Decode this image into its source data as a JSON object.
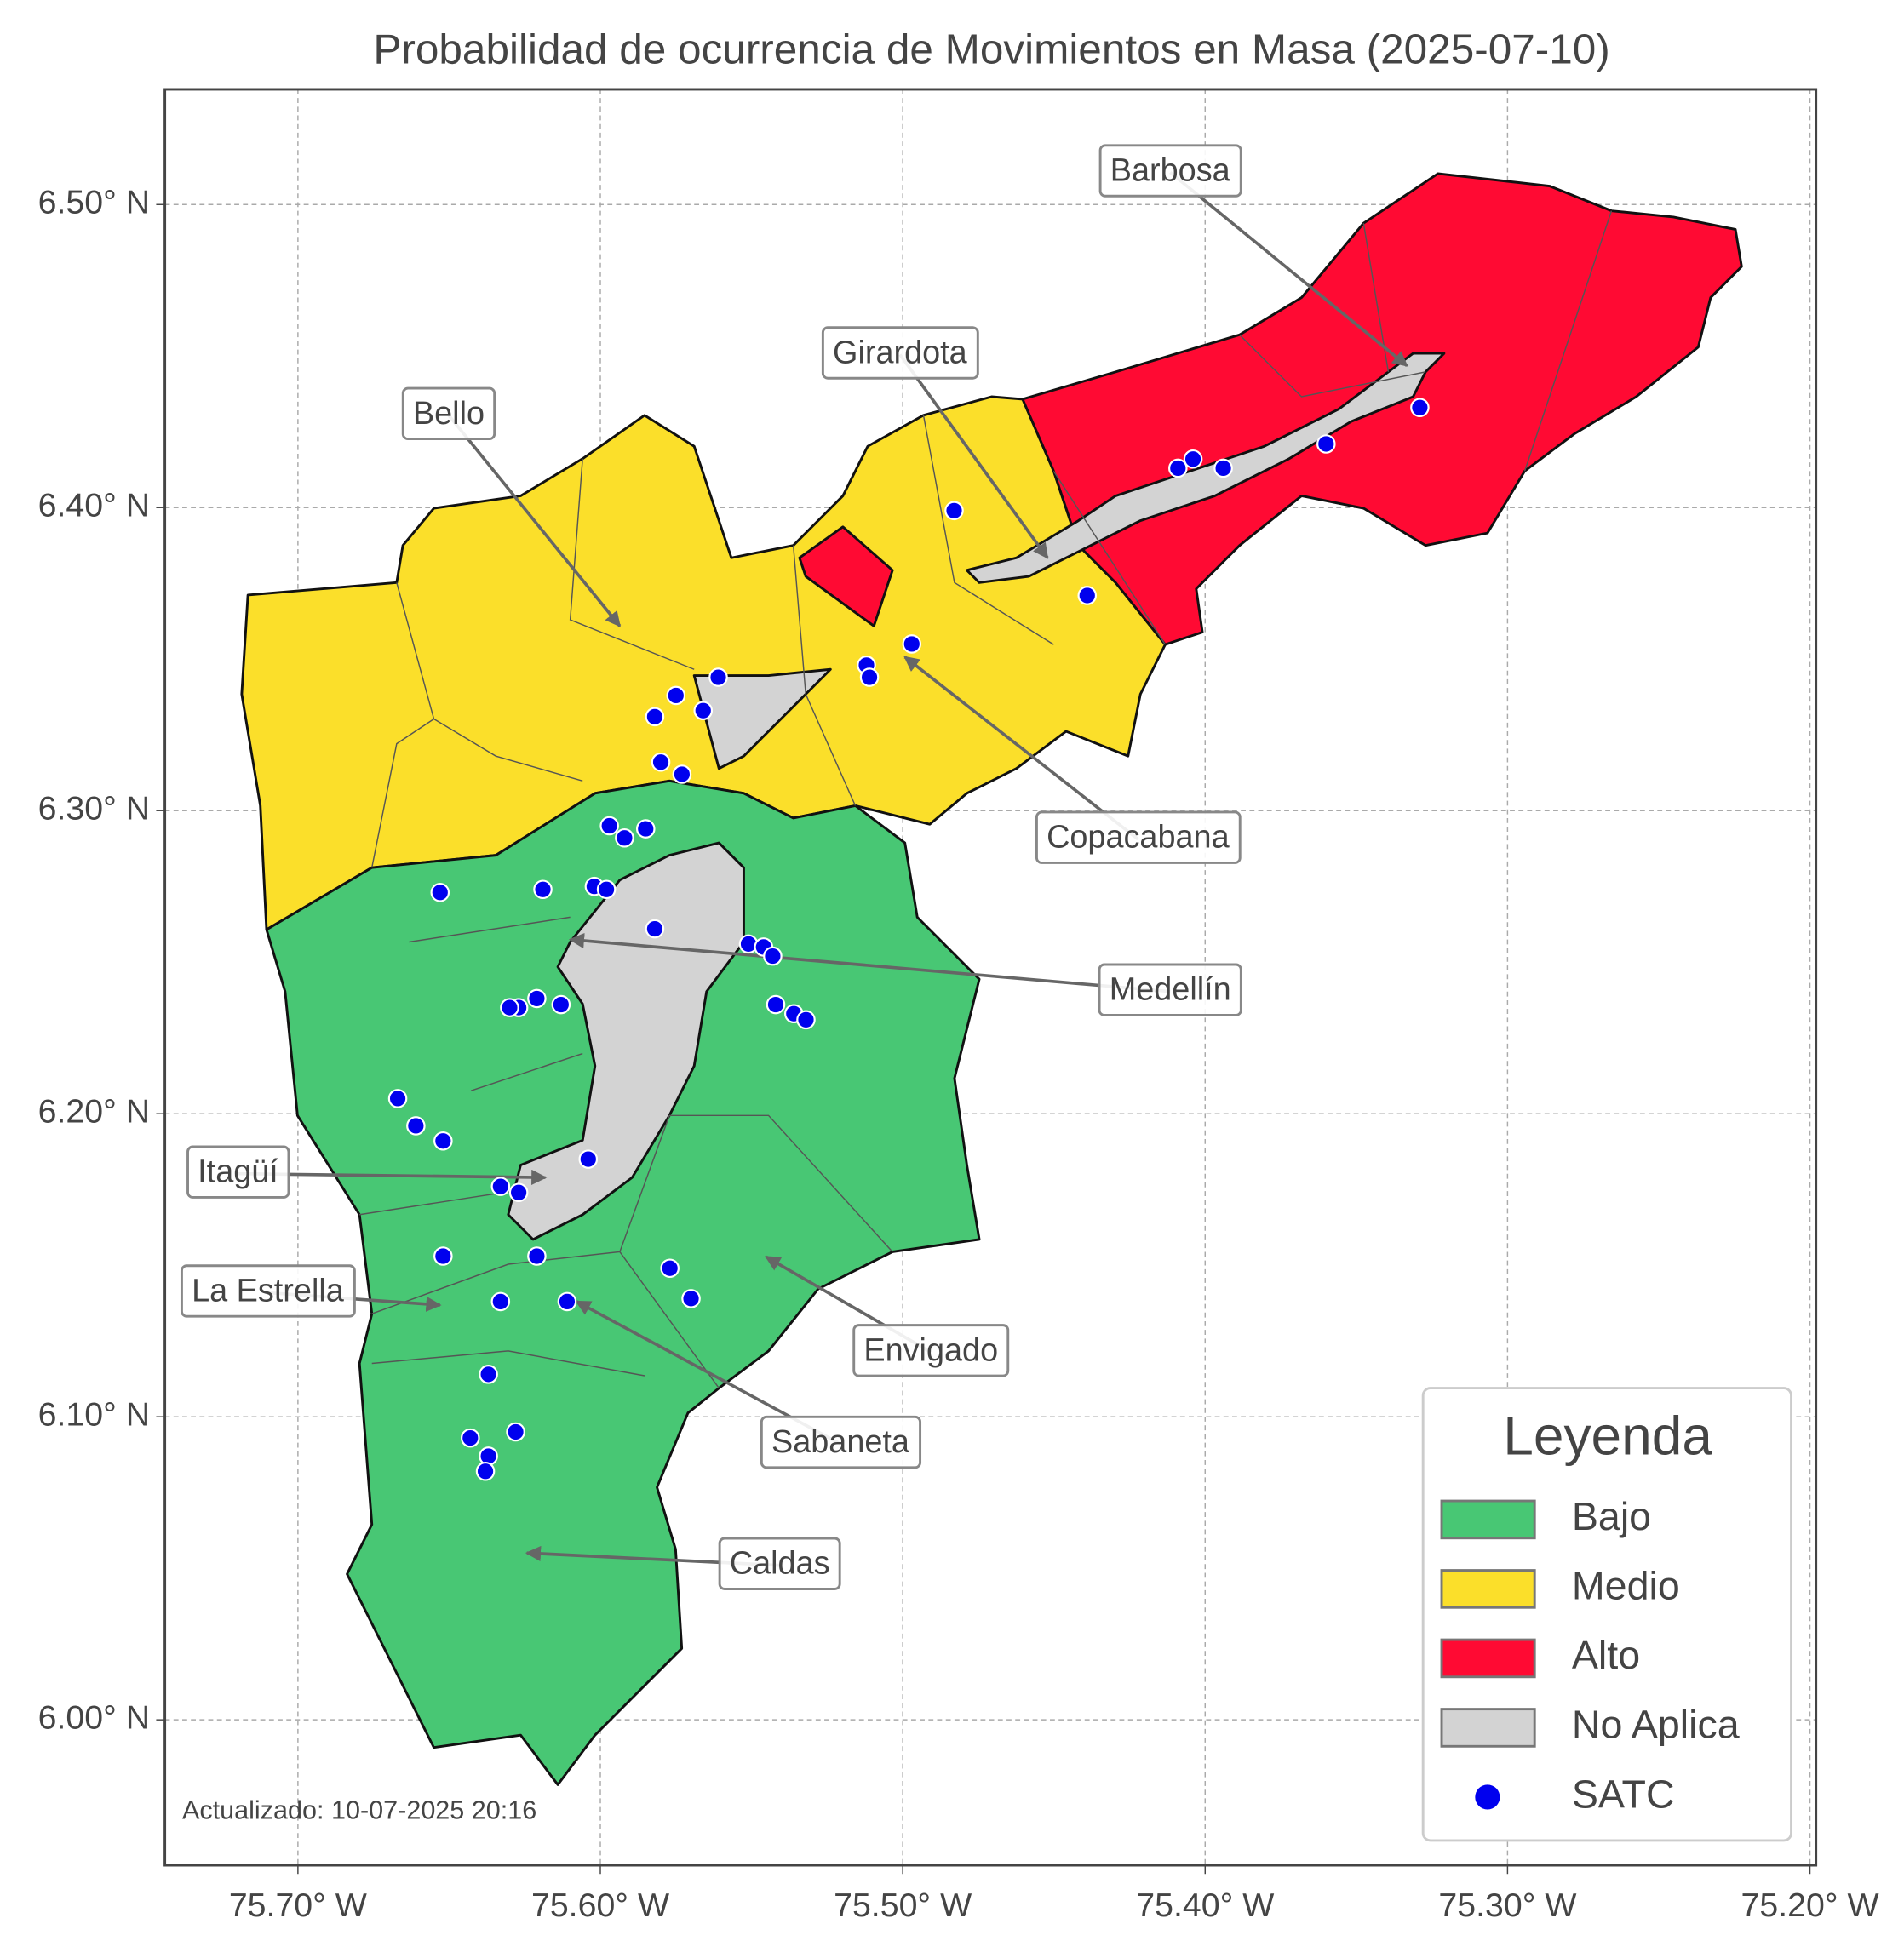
{
  "chart_data": {
    "type": "map",
    "title": "Probabilidad de ocurrencia de Movimientos en Masa (2025-07-10)",
    "xlim": [
      -75.744,
      -75.198
    ],
    "ylim": [
      5.952,
      6.538
    ],
    "xticks": [
      {
        "value": -75.7,
        "label": "75.70° W"
      },
      {
        "value": -75.6,
        "label": "75.60° W"
      },
      {
        "value": -75.5,
        "label": "75.50° W"
      },
      {
        "value": -75.4,
        "label": "75.40° W"
      },
      {
        "value": -75.3,
        "label": "75.30° W"
      },
      {
        "value": -75.2,
        "label": "75.20° W"
      }
    ],
    "yticks": [
      {
        "value": 6.0,
        "label": "6.00° N"
      },
      {
        "value": 6.1,
        "label": "6.10° N"
      },
      {
        "value": 6.2,
        "label": "6.20° N"
      },
      {
        "value": 6.3,
        "label": "6.30° N"
      },
      {
        "value": 6.4,
        "label": "6.40° N"
      },
      {
        "value": 6.5,
        "label": "6.50° N"
      }
    ],
    "grid": true,
    "categories": [
      "Bajo",
      "Medio",
      "Alto",
      "No Aplica"
    ],
    "colors": [
      "#48c774",
      "#fbdf2a",
      "#ff0a33",
      "#d3d3d3"
    ],
    "series": [
      {
        "name": "SATC",
        "color": "#0000ee",
        "x": [
          -75.329,
          -75.36,
          -75.394,
          -75.404,
          -75.409,
          -75.483,
          -75.439,
          -75.497,
          -75.512,
          -75.511,
          -75.561,
          -75.575,
          -75.566,
          -75.582,
          -75.58,
          -75.573,
          -75.597,
          -75.585,
          -75.592,
          -75.653,
          -75.619,
          -75.602,
          -75.598,
          -75.582,
          -75.551,
          -75.546,
          -75.543,
          -75.542,
          -75.536,
          -75.532,
          -75.621,
          -75.627,
          -75.63,
          -75.613,
          -75.667,
          -75.661,
          -75.652,
          -75.604,
          -75.633,
          -75.627,
          -75.652,
          -75.621,
          -75.577,
          -75.57,
          -75.633,
          -75.611,
          -75.637,
          -75.643,
          -75.628,
          -75.637,
          -75.638
        ],
        "values": [
          6.433,
          6.421,
          6.413,
          6.416,
          6.413,
          6.399,
          6.371,
          6.355,
          6.348,
          6.344,
          6.344,
          6.338,
          6.333,
          6.331,
          6.316,
          6.312,
          6.295,
          6.294,
          6.291,
          6.273,
          6.274,
          6.275,
          6.274,
          6.261,
          6.256,
          6.255,
          6.252,
          6.236,
          6.233,
          6.231,
          6.238,
          6.235,
          6.235,
          6.236,
          6.205,
          6.196,
          6.191,
          6.185,
          6.176,
          6.174,
          6.153,
          6.153,
          6.149,
          6.139,
          6.138,
          6.138,
          6.114,
          6.093,
          6.095,
          6.087,
          6.082
        ]
      }
    ],
    "annotations": [
      "Barbosa",
      "Girardota",
      "Bello",
      "Copacabana",
      "Medellín",
      "Itagüí",
      "La Estrella",
      "Envigado",
      "Sabaneta",
      "Caldas"
    ],
    "legend_title": "Leyenda",
    "footnote": "Actualizado: 10-07-2025 20:16"
  }
}
